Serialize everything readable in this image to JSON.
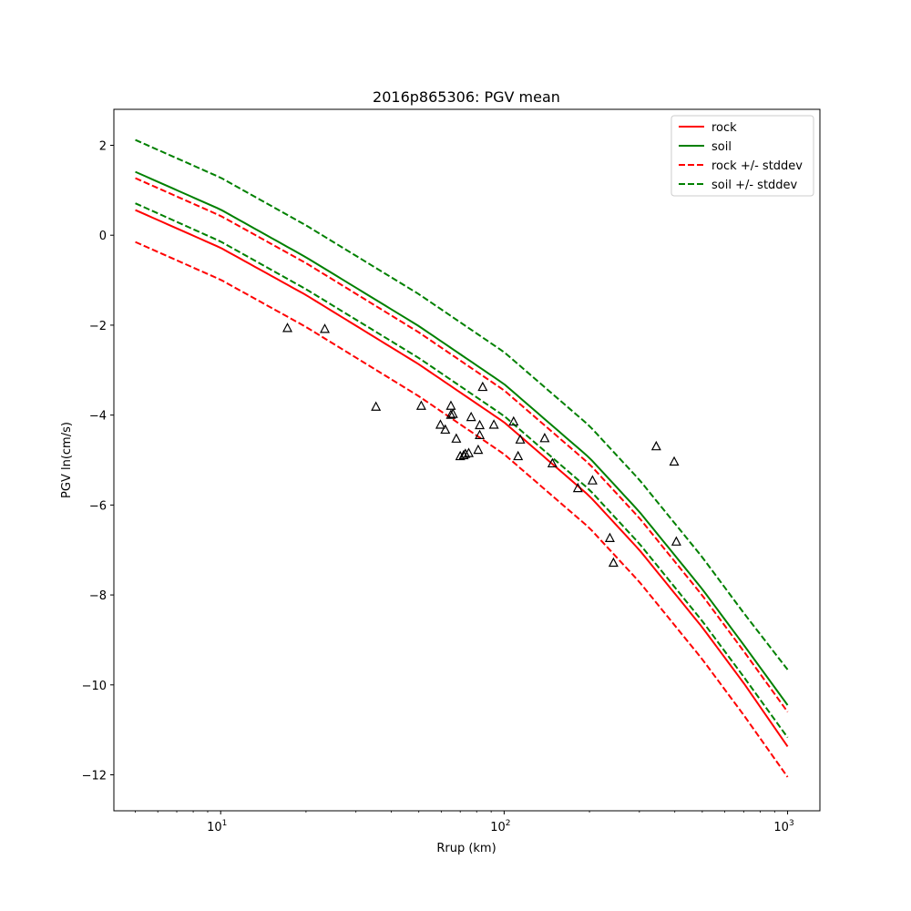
{
  "chart_data": {
    "type": "line",
    "title": "2016p865306: PGV mean",
    "xlabel": "Rrup (km)",
    "ylabel": "PGV ln(cm/s)",
    "xscale": "log",
    "xlim": [
      4.2,
      1300
    ],
    "ylim": [
      -12.8,
      2.8
    ],
    "x_major_ticks": [
      10,
      100,
      1000
    ],
    "x_tick_labels": [
      {
        "base": "10",
        "exp": "1"
      },
      {
        "base": "10",
        "exp": "2"
      },
      {
        "base": "10",
        "exp": "3"
      }
    ],
    "y_ticks": [
      2,
      0,
      -2,
      -4,
      -6,
      -8,
      -10,
      -12
    ],
    "y_tick_labels": [
      "2",
      "0",
      "−2",
      "−4",
      "−6",
      "−8",
      "−10",
      "−12"
    ],
    "grid": false,
    "legend_position": "top-right",
    "legend": [
      {
        "label": "rock",
        "color": "#ff0000",
        "style": "solid"
      },
      {
        "label": "soil",
        "color": "#008000",
        "style": "solid"
      },
      {
        "label": "rock +/- stddev",
        "color": "#ff0000",
        "style": "dashed"
      },
      {
        "label": "soil +/- stddev",
        "color": "#008000",
        "style": "dashed"
      }
    ],
    "x": [
      5,
      10,
      20,
      50,
      100,
      200,
      300,
      500,
      700,
      1000
    ],
    "series": [
      {
        "name": "rock",
        "color": "#ff0000",
        "style": "solid",
        "values": [
          0.56,
          -0.28,
          -1.33,
          -2.87,
          -4.16,
          -5.8,
          -7.0,
          -8.72,
          -9.96,
          -11.37
        ]
      },
      {
        "name": "soil",
        "color": "#008000",
        "style": "solid",
        "values": [
          1.41,
          0.57,
          -0.49,
          -2.02,
          -3.31,
          -4.95,
          -6.15,
          -7.87,
          -9.11,
          -10.45
        ]
      },
      {
        "name": "rock + stddev",
        "color": "#ff0000",
        "style": "dashed",
        "values": [
          1.27,
          0.43,
          -0.62,
          -2.16,
          -3.45,
          -5.09,
          -6.29,
          -8.01,
          -9.25,
          -10.6
        ]
      },
      {
        "name": "rock - stddev",
        "color": "#ff0000",
        "style": "dashed",
        "values": [
          -0.15,
          -0.99,
          -2.04,
          -3.58,
          -4.87,
          -6.51,
          -7.71,
          -9.43,
          -10.67,
          -12.05
        ]
      },
      {
        "name": "soil + stddev",
        "color": "#008000",
        "style": "dashed",
        "values": [
          2.12,
          1.28,
          0.22,
          -1.31,
          -2.6,
          -4.24,
          -5.44,
          -7.16,
          -8.4,
          -9.66
        ]
      },
      {
        "name": "soil - stddev",
        "color": "#008000",
        "style": "dashed",
        "values": [
          0.71,
          -0.14,
          -1.2,
          -2.73,
          -4.02,
          -5.66,
          -6.86,
          -8.58,
          -9.82,
          -11.17
        ]
      }
    ],
    "observations": {
      "marker": "triangle",
      "color": "#000000",
      "points": [
        [
          17.2,
          -2.07
        ],
        [
          23.3,
          -2.09
        ],
        [
          35.3,
          -3.82
        ],
        [
          51.0,
          -3.8
        ],
        [
          59.6,
          -4.22
        ],
        [
          62.0,
          -4.33
        ],
        [
          64.9,
          -3.8
        ],
        [
          64.9,
          -4.0
        ],
        [
          66.0,
          -3.98
        ],
        [
          67.8,
          -4.53
        ],
        [
          70.0,
          -4.92
        ],
        [
          72.0,
          -4.9
        ],
        [
          73.0,
          -4.87
        ],
        [
          75.0,
          -4.85
        ],
        [
          76.5,
          -4.05
        ],
        [
          81.0,
          -4.78
        ],
        [
          82.0,
          -4.23
        ],
        [
          82.0,
          -4.45
        ],
        [
          84.0,
          -3.38
        ],
        [
          92.0,
          -4.22
        ],
        [
          108.0,
          -4.15
        ],
        [
          112.0,
          -4.92
        ],
        [
          114.0,
          -4.55
        ],
        [
          139.0,
          -4.52
        ],
        [
          148.0,
          -5.08
        ],
        [
          182.0,
          -5.63
        ],
        [
          205.0,
          -5.46
        ],
        [
          236.0,
          -6.74
        ],
        [
          243.0,
          -7.29
        ],
        [
          344.0,
          -4.7
        ],
        [
          398.0,
          -5.04
        ],
        [
          405.0,
          -6.82
        ]
      ]
    }
  }
}
